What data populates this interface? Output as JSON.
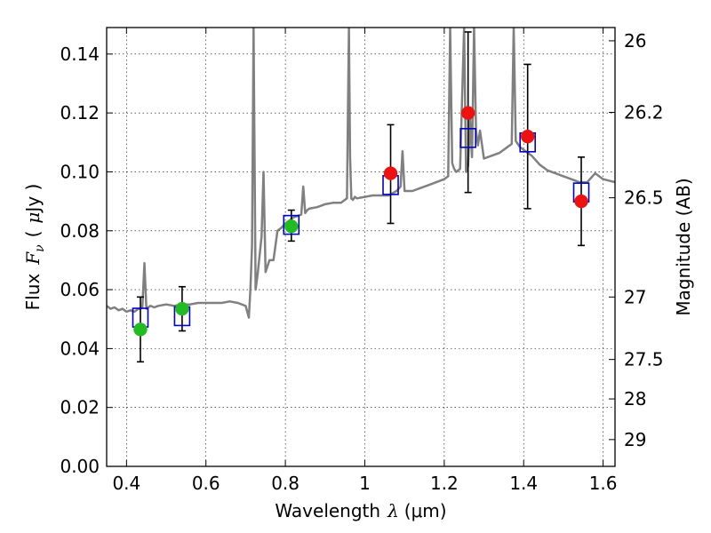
{
  "chart_data": {
    "type": "scatter",
    "x_axis": {
      "label_prefix": "Wavelength",
      "label_symbol": "λ",
      "label_unit": "(μm)",
      "range": [
        0.35,
        1.63
      ],
      "ticks": [
        0.4,
        0.6,
        0.8,
        1.0,
        1.2,
        1.4,
        1.6
      ],
      "tick_labels": [
        "0.4",
        "0.6",
        "0.8",
        "1",
        "1.2",
        "1.4",
        "1.6"
      ]
    },
    "y_axis": {
      "label_prefix": "Flux",
      "label_symbol": "F",
      "label_subscript": "ν",
      "label_unit_open": "(",
      "label_unit_mu": "μ",
      "label_unit_rest": "Jy )",
      "range": [
        0.0,
        0.149
      ],
      "ticks": [
        0.0,
        0.02,
        0.04,
        0.06,
        0.08,
        0.1,
        0.12,
        0.14
      ],
      "tick_labels": [
        "0.00",
        "0.02",
        "0.04",
        "0.06",
        "0.08",
        "0.10",
        "0.12",
        "0.14"
      ]
    },
    "y2_axis": {
      "label": "Magnitude (AB)",
      "ticks": [
        {
          "label": "26",
          "flux": 0.1445
        },
        {
          "label": "26.2",
          "flux": 0.1202
        },
        {
          "label": "26.5",
          "flux": 0.0912
        },
        {
          "label": "27",
          "flux": 0.0575
        },
        {
          "label": "27.5",
          "flux": 0.0363
        },
        {
          "label": "28",
          "flux": 0.0229
        },
        {
          "label": "29",
          "flux": 0.0091
        }
      ]
    },
    "grid": "dotted",
    "colors": {
      "model_line": "#808080",
      "model_band_square": "#0000cc",
      "observed_green": "#22bb22",
      "observed_red": "#ee1111",
      "error_bar": "#000000"
    },
    "model_spectrum": {
      "x": [
        0.35,
        0.36,
        0.37,
        0.38,
        0.39,
        0.4,
        0.41,
        0.42,
        0.43,
        0.435,
        0.44,
        0.445,
        0.45,
        0.46,
        0.47,
        0.48,
        0.5,
        0.52,
        0.54,
        0.56,
        0.58,
        0.6,
        0.62,
        0.64,
        0.66,
        0.68,
        0.7,
        0.708,
        0.712,
        0.716,
        0.72,
        0.725,
        0.73,
        0.74,
        0.745,
        0.75,
        0.76,
        0.77,
        0.78,
        0.79,
        0.8,
        0.81,
        0.82,
        0.83,
        0.84,
        0.845,
        0.85,
        0.855,
        0.86,
        0.88,
        0.9,
        0.92,
        0.94,
        0.955,
        0.96,
        0.963,
        0.966,
        0.97,
        0.975,
        0.98,
        1.0,
        1.02,
        1.04,
        1.06,
        1.08,
        1.09,
        1.095,
        1.1,
        1.12,
        1.14,
        1.16,
        1.18,
        1.2,
        1.21,
        1.215,
        1.22,
        1.225,
        1.23,
        1.24,
        1.25,
        1.255,
        1.26,
        1.265,
        1.27,
        1.275,
        1.28,
        1.285,
        1.29,
        1.3,
        1.32,
        1.34,
        1.36,
        1.37,
        1.375,
        1.38,
        1.39,
        1.4,
        1.42,
        1.44,
        1.46,
        1.48,
        1.5,
        1.52,
        1.54,
        1.56,
        1.58,
        1.6,
        1.63
      ],
      "y": [
        0.0545,
        0.0535,
        0.054,
        0.053,
        0.0535,
        0.0525,
        0.053,
        0.0525,
        0.0535,
        0.0535,
        0.054,
        0.069,
        0.0535,
        0.0545,
        0.054,
        0.0545,
        0.055,
        0.0545,
        0.055,
        0.055,
        0.0555,
        0.0555,
        0.0555,
        0.0555,
        0.056,
        0.0555,
        0.0545,
        0.0505,
        0.0605,
        0.075,
        0.149,
        0.06,
        0.065,
        0.078,
        0.1,
        0.066,
        0.07,
        0.07,
        0.08,
        0.081,
        0.0825,
        0.0835,
        0.0845,
        0.085,
        0.0855,
        0.095,
        0.086,
        0.087,
        0.0875,
        0.088,
        0.089,
        0.0895,
        0.0895,
        0.091,
        0.149,
        0.105,
        0.091,
        0.0905,
        0.0915,
        0.091,
        0.0915,
        0.092,
        0.092,
        0.092,
        0.0935,
        0.095,
        0.107,
        0.0935,
        0.0935,
        0.0945,
        0.0955,
        0.0965,
        0.0975,
        0.0985,
        0.149,
        0.103,
        0.101,
        0.1,
        0.101,
        0.149,
        0.1,
        0.102,
        0.118,
        0.105,
        0.149,
        0.114,
        0.109,
        0.114,
        0.1045,
        0.1055,
        0.1065,
        0.1085,
        0.1095,
        0.149,
        0.1105,
        0.1085,
        0.1075,
        0.1055,
        0.1025,
        0.1005,
        0.0995,
        0.0985,
        0.0975,
        0.0965,
        0.0965,
        0.0995,
        0.0975,
        0.0965
      ]
    },
    "model_band_fluxes": [
      {
        "x": 0.435,
        "y": 0.0505
      },
      {
        "x": 0.54,
        "y": 0.051
      },
      {
        "x": 0.815,
        "y": 0.082
      },
      {
        "x": 1.065,
        "y": 0.0955
      },
      {
        "x": 1.26,
        "y": 0.1115
      },
      {
        "x": 1.41,
        "y": 0.11
      },
      {
        "x": 1.545,
        "y": 0.093
      }
    ],
    "observed_points": [
      {
        "x": 0.435,
        "y": 0.0465,
        "err_low": 0.0355,
        "err_high": 0.0575,
        "color": "green"
      },
      {
        "x": 0.54,
        "y": 0.0535,
        "err_low": 0.046,
        "err_high": 0.061,
        "color": "green"
      },
      {
        "x": 0.815,
        "y": 0.0815,
        "err_low": 0.0765,
        "err_high": 0.087,
        "color": "green"
      },
      {
        "x": 1.065,
        "y": 0.0995,
        "err_low": 0.0825,
        "err_high": 0.116,
        "color": "red"
      },
      {
        "x": 1.26,
        "y": 0.12,
        "err_low": 0.093,
        "err_high": 0.1475,
        "color": "red"
      },
      {
        "x": 1.41,
        "y": 0.112,
        "err_low": 0.0875,
        "err_high": 0.1365,
        "color": "red"
      },
      {
        "x": 1.545,
        "y": 0.09,
        "err_low": 0.075,
        "err_high": 0.105,
        "color": "red"
      }
    ]
  }
}
